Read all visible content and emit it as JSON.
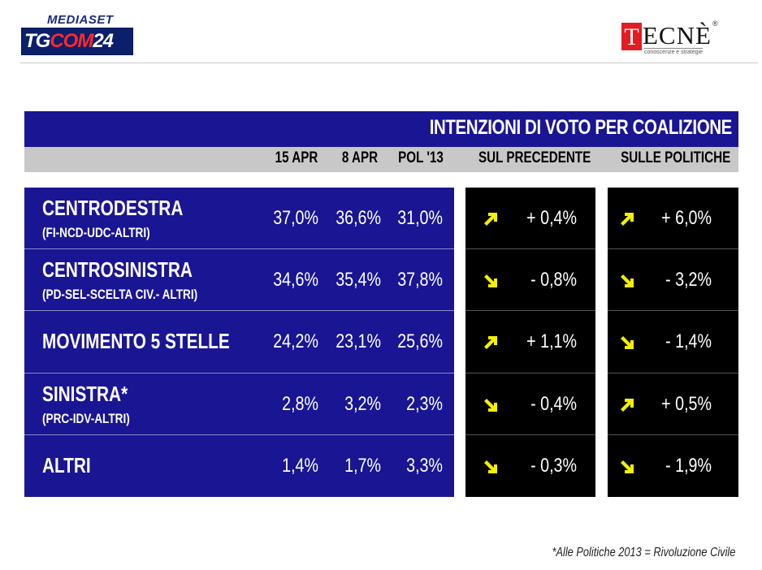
{
  "header": {
    "brand_top": "MEDIASET",
    "brand_tg": "TG",
    "brand_com": "COM",
    "brand_num": "24",
    "tecne_first": "T",
    "tecne_rest": "ECNÈ",
    "tecne_reg": "®",
    "tecne_tagline": "conoscenze e strategie"
  },
  "colors": {
    "panel_blue": "#1a1593",
    "header_grey": "#c8c8c8",
    "delta_black": "#000000",
    "arrow_yellow": "#f4f000"
  },
  "chart_data": {
    "type": "table",
    "title": "INTENZIONI DI VOTO PER COALIZIONE",
    "columns": [
      "15 APR",
      "8 APR",
      "POL '13",
      "SUL PRECEDENTE",
      "SULLE POLITICHE"
    ],
    "rows": [
      {
        "name": "CENTRODESTRA",
        "sub": "(FI-NCD-UDC-ALTRI)",
        "values": [
          "37,0%",
          "36,6%",
          "31,0%"
        ],
        "vs_prev": {
          "dir": "up",
          "text": "+ 0,4%"
        },
        "vs_pol": {
          "dir": "up",
          "text": "+ 6,0%"
        }
      },
      {
        "name": "CENTROSINISTRA",
        "sub": "(PD-SEL-SCELTA CIV.- ALTRI)",
        "values": [
          "34,6%",
          "35,4%",
          "37,8%"
        ],
        "vs_prev": {
          "dir": "down",
          "text": "- 0,8%"
        },
        "vs_pol": {
          "dir": "down",
          "text": "- 3,2%"
        }
      },
      {
        "name": "MOVIMENTO 5 STELLE",
        "sub": "",
        "values": [
          "24,2%",
          "23,1%",
          "25,6%"
        ],
        "vs_prev": {
          "dir": "up",
          "text": "+ 1,1%"
        },
        "vs_pol": {
          "dir": "down",
          "text": "- 1,4%"
        }
      },
      {
        "name": "SINISTRA*",
        "sub": "(PRC-IDV-ALTRI)",
        "values": [
          "2,8%",
          "3,2%",
          "2,3%"
        ],
        "vs_prev": {
          "dir": "down",
          "text": "- 0,4%"
        },
        "vs_pol": {
          "dir": "up",
          "text": "+ 0,5%"
        }
      },
      {
        "name": "ALTRI",
        "sub": "",
        "values": [
          "1,4%",
          "1,7%",
          "3,3%"
        ],
        "vs_prev": {
          "dir": "down",
          "text": "- 0,3%"
        },
        "vs_pol": {
          "dir": "down",
          "text": "- 1,9%"
        }
      }
    ],
    "footnote": "*Alle Politiche 2013 = Rivoluzione Civile"
  }
}
